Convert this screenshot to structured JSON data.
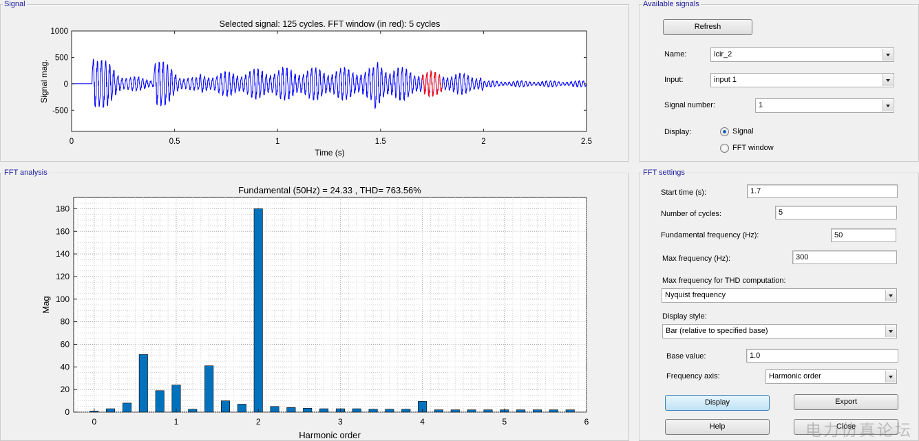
{
  "signal_panel": {
    "title": "Signal",
    "plot": {
      "title": "Selected signal: 125 cycles. FFT window (in red): 5 cycles",
      "xlabel": "Time (s)",
      "ylabel": "Signal mag.",
      "xticks": [
        "0",
        "0.5",
        "1",
        "1.5",
        "2",
        "2.5"
      ],
      "yticks": [
        "1000",
        "500",
        "0",
        "-500"
      ]
    }
  },
  "available_signals": {
    "title": "Available signals",
    "refresh_label": "Refresh",
    "name_label": "Name:",
    "name_value": "icir_2",
    "input_label": "Input:",
    "input_value": "input 1",
    "signal_number_label": "Signal number:",
    "signal_number_value": "1",
    "display_label": "Display:",
    "display_options": [
      "Signal",
      "FFT window"
    ],
    "display_selected": "Signal"
  },
  "fft_panel": {
    "title": "FFT analysis"
  },
  "fft_settings": {
    "title": "FFT settings",
    "start_time_label": "Start time (s):",
    "start_time_value": "1.7",
    "cycles_label": "Number of cycles:",
    "cycles_value": "5",
    "fund_freq_label": "Fundamental frequency (Hz):",
    "fund_freq_value": "50",
    "max_freq_label": "Max frequency (Hz):",
    "max_freq_value": "300",
    "thd_label": "Max frequency for THD computation:",
    "thd_value": "Nyquist frequency",
    "style_label": "Display style:",
    "style_value": "Bar (relative to specified base)",
    "base_label": "Base value:",
    "base_value": "1.0",
    "freq_axis_label": "Frequency axis:",
    "freq_axis_value": "Harmonic order",
    "display_btn": "Display",
    "export_btn": "Export",
    "help_btn": "Help",
    "close_btn": "Close"
  },
  "watermark": "电力仿真论坛",
  "colors": {
    "bar": "#0072bd",
    "signal": "#0000ff",
    "fft_window": "#ff0000",
    "panel_title": "#1a1a9c"
  },
  "chart_data": {
    "type": "bar",
    "title": "Fundamental (50Hz) = 24.33 , THD= 763.56%",
    "xlabel": "Harmonic order",
    "ylabel": "Mag",
    "xlim": [
      -0.25,
      6
    ],
    "ylim": [
      0,
      190
    ],
    "xticks": [
      0,
      1,
      2,
      3,
      4,
      5,
      6
    ],
    "yticks": [
      0,
      20,
      40,
      60,
      80,
      100,
      120,
      140,
      160,
      180
    ],
    "grid": true,
    "x": [
      0,
      0.2,
      0.4,
      0.6,
      0.8,
      1.0,
      1.2,
      1.4,
      1.6,
      1.8,
      2.0,
      2.2,
      2.4,
      2.6,
      2.8,
      3.0,
      3.2,
      3.4,
      3.6,
      3.8,
      4.0,
      4.2,
      4.4,
      4.6,
      4.8,
      5.0,
      5.2,
      5.4,
      5.6,
      5.8
    ],
    "values": [
      1,
      3,
      8,
      51,
      19,
      24,
      2.5,
      41,
      10,
      7,
      180,
      5,
      4,
      3.5,
      3,
      3,
      3,
      2.5,
      2.5,
      2.5,
      9.5,
      2,
      2,
      2,
      2,
      2,
      2,
      2,
      2,
      2
    ]
  }
}
